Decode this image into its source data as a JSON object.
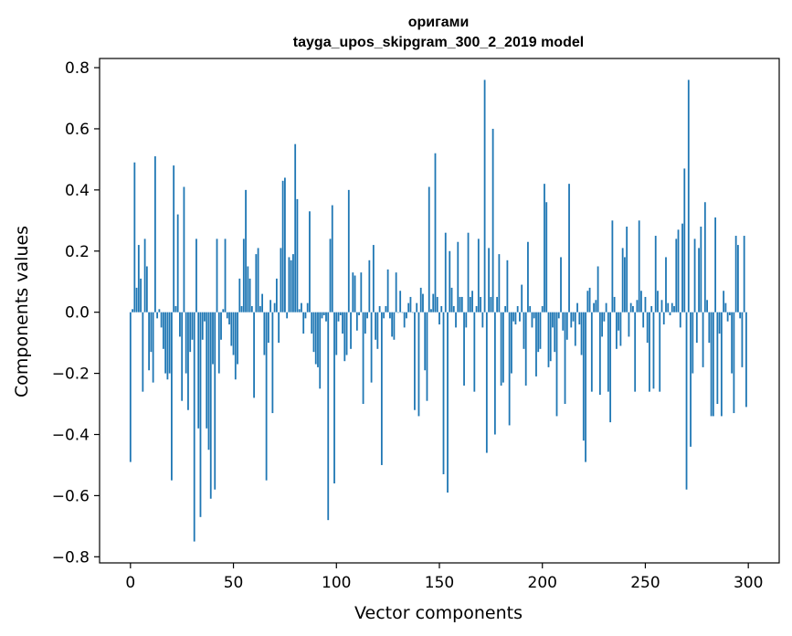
{
  "chart_data": {
    "type": "bar",
    "title_line1": "оригами",
    "title_line2": "tayga_upos_skipgram_300_2_2019 model",
    "xlabel": "Vector components",
    "ylabel": "Components values",
    "xlim": [
      -15,
      315
    ],
    "ylim": [
      -0.82,
      0.83
    ],
    "x_ticks": [
      0,
      50,
      100,
      150,
      200,
      250,
      300
    ],
    "x_tick_labels": [
      "0",
      "50",
      "100",
      "150",
      "200",
      "250",
      "300"
    ],
    "y_ticks": [
      0.8,
      0.6,
      0.4,
      0.2,
      0.0,
      -0.2,
      -0.4,
      -0.6,
      -0.8
    ],
    "y_tick_labels": [
      "0.8",
      "0.6",
      "0.4",
      "0.2",
      "0.0",
      "−0.2",
      "−0.4",
      "−0.6",
      "−0.8"
    ],
    "bar_color": "#1f77b4",
    "grid": false,
    "legend": "none",
    "values": [
      -0.49,
      0.01,
      0.49,
      0.08,
      0.22,
      0.11,
      -0.26,
      0.24,
      0.15,
      -0.19,
      -0.13,
      -0.23,
      0.51,
      -0.02,
      0.01,
      -0.05,
      -0.12,
      -0.2,
      -0.22,
      -0.2,
      -0.55,
      0.48,
      0.02,
      0.32,
      -0.08,
      -0.29,
      0.41,
      -0.2,
      -0.32,
      -0.13,
      -0.09,
      -0.75,
      0.24,
      -0.38,
      -0.67,
      -0.09,
      -0.03,
      -0.38,
      -0.45,
      -0.61,
      -0.17,
      -0.58,
      0.24,
      -0.2,
      -0.09,
      0.01,
      0.24,
      -0.02,
      -0.04,
      -0.11,
      -0.14,
      -0.22,
      -0.17,
      0.11,
      0.02,
      0.24,
      0.4,
      0.15,
      0.11,
      0.02,
      -0.28,
      0.19,
      0.21,
      0.02,
      0.06,
      -0.14,
      -0.55,
      -0.1,
      0.04,
      -0.33,
      0.03,
      0.11,
      -0.1,
      0.21,
      0.43,
      0.44,
      -0.02,
      0.18,
      0.17,
      0.19,
      0.55,
      0.37,
      0.01,
      0.03,
      -0.07,
      -0.02,
      0.03,
      0.33,
      -0.07,
      -0.13,
      -0.17,
      -0.18,
      -0.25,
      -0.02,
      -0.01,
      -0.03,
      -0.68,
      0.24,
      0.35,
      -0.56,
      -0.14,
      -0.03,
      -0.01,
      -0.07,
      -0.16,
      -0.14,
      0.4,
      -0.12,
      0.13,
      0.12,
      -0.06,
      -0.01,
      0.13,
      -0.3,
      -0.07,
      -0.02,
      0.17,
      -0.23,
      0.22,
      -0.09,
      -0.12,
      0.02,
      -0.5,
      -0.02,
      0.02,
      0.14,
      -0.02,
      -0.08,
      -0.09,
      0.13,
      0.0,
      0.07,
      0.0,
      -0.05,
      -0.02,
      0.03,
      0.05,
      0.0,
      -0.32,
      0.03,
      -0.34,
      0.08,
      0.06,
      -0.19,
      -0.29,
      0.41,
      0.01,
      0.06,
      0.52,
      0.05,
      -0.04,
      0.02,
      -0.53,
      0.26,
      -0.59,
      0.2,
      0.08,
      0.02,
      -0.05,
      0.23,
      0.05,
      0.05,
      -0.24,
      -0.05,
      0.26,
      0.05,
      0.07,
      -0.26,
      0.02,
      0.24,
      0.05,
      -0.05,
      0.76,
      -0.46,
      0.21,
      0.05,
      0.6,
      -0.4,
      0.05,
      0.19,
      -0.24,
      -0.23,
      0.02,
      0.17,
      -0.37,
      -0.2,
      -0.03,
      -0.04,
      0.02,
      -0.03,
      0.09,
      -0.12,
      -0.24,
      0.23,
      0.02,
      -0.05,
      -0.02,
      -0.21,
      -0.13,
      -0.12,
      0.02,
      0.42,
      0.36,
      -0.18,
      -0.16,
      -0.05,
      -0.13,
      -0.34,
      -0.02,
      0.18,
      -0.06,
      -0.3,
      -0.09,
      0.42,
      -0.05,
      -0.03,
      -0.11,
      0.03,
      -0.04,
      -0.14,
      -0.42,
      -0.49,
      0.07,
      0.08,
      -0.26,
      0.03,
      0.04,
      0.15,
      -0.27,
      -0.08,
      -0.03,
      0.03,
      -0.26,
      -0.36,
      0.3,
      0.05,
      -0.12,
      -0.06,
      -0.11,
      0.21,
      0.18,
      0.28,
      -0.08,
      0.03,
      0.02,
      -0.26,
      0.04,
      0.3,
      0.07,
      -0.05,
      0.05,
      -0.1,
      -0.26,
      0.02,
      -0.25,
      0.25,
      0.07,
      -0.26,
      0.04,
      -0.04,
      0.18,
      0.03,
      -0.01,
      0.03,
      0.02,
      0.24,
      0.27,
      -0.05,
      0.29,
      0.47,
      -0.58,
      0.76,
      -0.44,
      -0.2,
      0.24,
      -0.1,
      0.21,
      0.28,
      -0.18,
      0.36,
      0.04,
      -0.1,
      -0.34,
      -0.34,
      0.31,
      -0.3,
      -0.07,
      -0.34,
      0.07,
      0.03,
      -0.03,
      -0.01,
      -0.2,
      -0.33,
      0.25,
      0.22,
      -0.02,
      -0.18,
      0.25,
      -0.31
    ]
  }
}
